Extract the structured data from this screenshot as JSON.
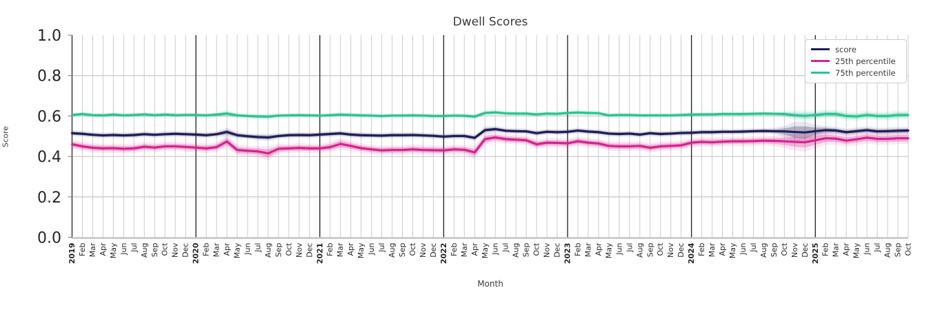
{
  "title": "Dwell Scores",
  "xlabel": "Month",
  "ylabel": "Score",
  "chart_data": {
    "type": "line",
    "title": "Dwell Scores",
    "xlabel": "Month",
    "ylabel": "Score",
    "ylim": [
      0.0,
      1.0
    ],
    "yticks": [
      0.0,
      0.2,
      0.4,
      0.6,
      0.8,
      1.0
    ],
    "grid": true,
    "legend_position": "upper right",
    "x_labels": [
      "2019",
      "Feb",
      "Mar",
      "Apr",
      "May",
      "Jun",
      "Jul",
      "Aug",
      "Sep",
      "Oct",
      "Nov",
      "Dec",
      "2020",
      "Feb",
      "Mar",
      "Apr",
      "May",
      "Jun",
      "Jul",
      "Aug",
      "Sep",
      "Oct",
      "Nov",
      "Dec",
      "2021",
      "Feb",
      "Mar",
      "Apr",
      "May",
      "Jun",
      "Jul",
      "Aug",
      "Sep",
      "Oct",
      "Nov",
      "Dec",
      "2022",
      "Feb",
      "Mar",
      "Apr",
      "May",
      "Jun",
      "Jul",
      "Aug",
      "Sep",
      "Oct",
      "Nov",
      "Dec",
      "2023",
      "Feb",
      "Mar",
      "Apr",
      "May",
      "Jun",
      "Jul",
      "Aug",
      "Sep",
      "Oct",
      "Nov",
      "Dec",
      "2024",
      "Feb",
      "Mar",
      "Apr",
      "May",
      "Jun",
      "Jul",
      "Aug",
      "Sep",
      "Oct",
      "Nov",
      "Dec",
      "2025",
      "Feb",
      "Mar",
      "Apr",
      "May",
      "Jun",
      "Jul",
      "Aug",
      "Sep",
      "Oct"
    ],
    "year_tick_indices": [
      0,
      12,
      24,
      36,
      48,
      60,
      72
    ],
    "series": [
      {
        "name": "score",
        "color": "#1f1d59",
        "values": [
          0.515,
          0.512,
          0.507,
          0.504,
          0.506,
          0.504,
          0.506,
          0.51,
          0.507,
          0.51,
          0.512,
          0.51,
          0.508,
          0.505,
          0.51,
          0.521,
          0.505,
          0.5,
          0.496,
          0.494,
          0.501,
          0.505,
          0.506,
          0.505,
          0.508,
          0.511,
          0.514,
          0.508,
          0.505,
          0.504,
          0.503,
          0.505,
          0.505,
          0.506,
          0.504,
          0.502,
          0.498,
          0.501,
          0.501,
          0.492,
          0.53,
          0.535,
          0.527,
          0.525,
          0.524,
          0.515,
          0.522,
          0.52,
          0.522,
          0.528,
          0.523,
          0.52,
          0.513,
          0.511,
          0.513,
          0.508,
          0.515,
          0.511,
          0.513,
          0.516,
          0.517,
          0.52,
          0.52,
          0.522,
          0.522,
          0.523,
          0.525,
          0.526,
          0.525,
          0.524,
          0.521,
          0.519,
          0.525,
          0.53,
          0.528,
          0.52,
          0.525,
          0.53,
          0.524,
          0.525,
          0.527,
          0.528
        ],
        "band": [
          0.008,
          0.008,
          0.008,
          0.008,
          0.008,
          0.008,
          0.008,
          0.008,
          0.008,
          0.008,
          0.008,
          0.008,
          0.008,
          0.008,
          0.008,
          0.012,
          0.009,
          0.008,
          0.009,
          0.01,
          0.008,
          0.008,
          0.008,
          0.008,
          0.008,
          0.008,
          0.008,
          0.008,
          0.008,
          0.008,
          0.008,
          0.008,
          0.008,
          0.008,
          0.008,
          0.008,
          0.008,
          0.008,
          0.008,
          0.009,
          0.01,
          0.009,
          0.008,
          0.008,
          0.008,
          0.008,
          0.008,
          0.008,
          0.008,
          0.008,
          0.008,
          0.008,
          0.008,
          0.008,
          0.008,
          0.008,
          0.008,
          0.008,
          0.008,
          0.008,
          0.008,
          0.008,
          0.008,
          0.008,
          0.008,
          0.008,
          0.008,
          0.008,
          0.009,
          0.015,
          0.028,
          0.03,
          0.018,
          0.012,
          0.01,
          0.01,
          0.01,
          0.01,
          0.01,
          0.01,
          0.01,
          0.01
        ]
      },
      {
        "name": "25th percentile",
        "color": "#d6218e",
        "values": [
          0.46,
          0.45,
          0.443,
          0.44,
          0.441,
          0.438,
          0.44,
          0.448,
          0.444,
          0.45,
          0.45,
          0.447,
          0.444,
          0.44,
          0.446,
          0.474,
          0.432,
          0.428,
          0.425,
          0.415,
          0.438,
          0.44,
          0.442,
          0.44,
          0.44,
          0.446,
          0.462,
          0.452,
          0.441,
          0.435,
          0.43,
          0.432,
          0.432,
          0.435,
          0.432,
          0.431,
          0.43,
          0.435,
          0.433,
          0.42,
          0.486,
          0.494,
          0.486,
          0.483,
          0.48,
          0.46,
          0.468,
          0.467,
          0.465,
          0.475,
          0.468,
          0.464,
          0.452,
          0.45,
          0.45,
          0.452,
          0.443,
          0.45,
          0.452,
          0.455,
          0.468,
          0.472,
          0.47,
          0.473,
          0.475,
          0.475,
          0.476,
          0.478,
          0.477,
          0.475,
          0.472,
          0.47,
          0.48,
          0.49,
          0.488,
          0.478,
          0.485,
          0.493,
          0.487,
          0.487,
          0.49,
          0.49
        ],
        "band": [
          0.013,
          0.013,
          0.013,
          0.013,
          0.013,
          0.013,
          0.013,
          0.013,
          0.013,
          0.013,
          0.013,
          0.013,
          0.013,
          0.013,
          0.013,
          0.018,
          0.015,
          0.014,
          0.015,
          0.02,
          0.014,
          0.013,
          0.013,
          0.013,
          0.013,
          0.014,
          0.016,
          0.014,
          0.013,
          0.013,
          0.013,
          0.013,
          0.013,
          0.013,
          0.013,
          0.013,
          0.013,
          0.013,
          0.013,
          0.017,
          0.016,
          0.014,
          0.013,
          0.013,
          0.013,
          0.013,
          0.013,
          0.013,
          0.013,
          0.013,
          0.013,
          0.013,
          0.013,
          0.013,
          0.013,
          0.013,
          0.013,
          0.013,
          0.013,
          0.013,
          0.013,
          0.013,
          0.013,
          0.013,
          0.013,
          0.013,
          0.013,
          0.013,
          0.014,
          0.018,
          0.024,
          0.026,
          0.022,
          0.018,
          0.016,
          0.016,
          0.016,
          0.016,
          0.016,
          0.016,
          0.016,
          0.016
        ]
      },
      {
        "name": "75th percentile",
        "color": "#2bc392",
        "values": [
          0.605,
          0.61,
          0.604,
          0.603,
          0.607,
          0.603,
          0.605,
          0.608,
          0.604,
          0.607,
          0.604,
          0.605,
          0.605,
          0.603,
          0.607,
          0.612,
          0.603,
          0.6,
          0.598,
          0.597,
          0.602,
          0.603,
          0.604,
          0.603,
          0.602,
          0.604,
          0.607,
          0.605,
          0.603,
          0.602,
          0.6,
          0.602,
          0.602,
          0.603,
          0.602,
          0.6,
          0.6,
          0.602,
          0.601,
          0.597,
          0.615,
          0.618,
          0.613,
          0.612,
          0.612,
          0.608,
          0.612,
          0.611,
          0.615,
          0.617,
          0.615,
          0.614,
          0.603,
          0.605,
          0.605,
          0.603,
          0.603,
          0.603,
          0.603,
          0.605,
          0.607,
          0.608,
          0.608,
          0.61,
          0.61,
          0.61,
          0.611,
          0.612,
          0.611,
          0.61,
          0.604,
          0.601,
          0.605,
          0.61,
          0.61,
          0.6,
          0.598,
          0.605,
          0.6,
          0.6,
          0.605,
          0.605
        ],
        "band": [
          0.007,
          0.007,
          0.007,
          0.007,
          0.007,
          0.007,
          0.007,
          0.007,
          0.007,
          0.007,
          0.007,
          0.007,
          0.007,
          0.007,
          0.007,
          0.01,
          0.008,
          0.007,
          0.008,
          0.009,
          0.007,
          0.007,
          0.007,
          0.007,
          0.007,
          0.007,
          0.007,
          0.007,
          0.007,
          0.007,
          0.007,
          0.007,
          0.007,
          0.007,
          0.007,
          0.007,
          0.007,
          0.007,
          0.007,
          0.008,
          0.008,
          0.007,
          0.007,
          0.007,
          0.007,
          0.007,
          0.007,
          0.007,
          0.007,
          0.007,
          0.007,
          0.007,
          0.007,
          0.007,
          0.007,
          0.007,
          0.007,
          0.007,
          0.007,
          0.007,
          0.007,
          0.007,
          0.007,
          0.007,
          0.007,
          0.007,
          0.007,
          0.007,
          0.007,
          0.009,
          0.013,
          0.015,
          0.013,
          0.012,
          0.012,
          0.013,
          0.012,
          0.012,
          0.012,
          0.012,
          0.012,
          0.012
        ]
      }
    ]
  },
  "colors": {
    "grid": "#cccccc",
    "year_line": "#2b2b2b",
    "bottom_spine": "#c3c3c3",
    "left_spine": "#4a4a4a",
    "tick_label": "#262626"
  }
}
